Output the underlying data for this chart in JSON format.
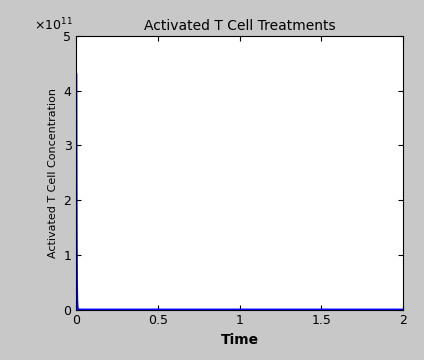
{
  "title": "Activated T Cell Treatments",
  "xlabel": "Time",
  "ylabel": "Activated T Cell Concentration",
  "xlim": [
    0,
    2
  ],
  "ylim": [
    0,
    500000000000.0
  ],
  "yticks": [
    0,
    100000000000.0,
    200000000000.0,
    300000000000.0,
    400000000000.0,
    500000000000.0
  ],
  "xticks": [
    0,
    0.5,
    1,
    1.5,
    2
  ],
  "line_color": "#0000FF",
  "line_width": 1.5,
  "peak_value": 430000000000.0,
  "decay_rate": 600,
  "figure_bg_color": "#c8c8c8",
  "axes_bg_color": "#ffffff",
  "title_fontsize": 10,
  "xlabel_fontsize": 10,
  "ylabel_fontsize": 8,
  "tick_fontsize": 9
}
